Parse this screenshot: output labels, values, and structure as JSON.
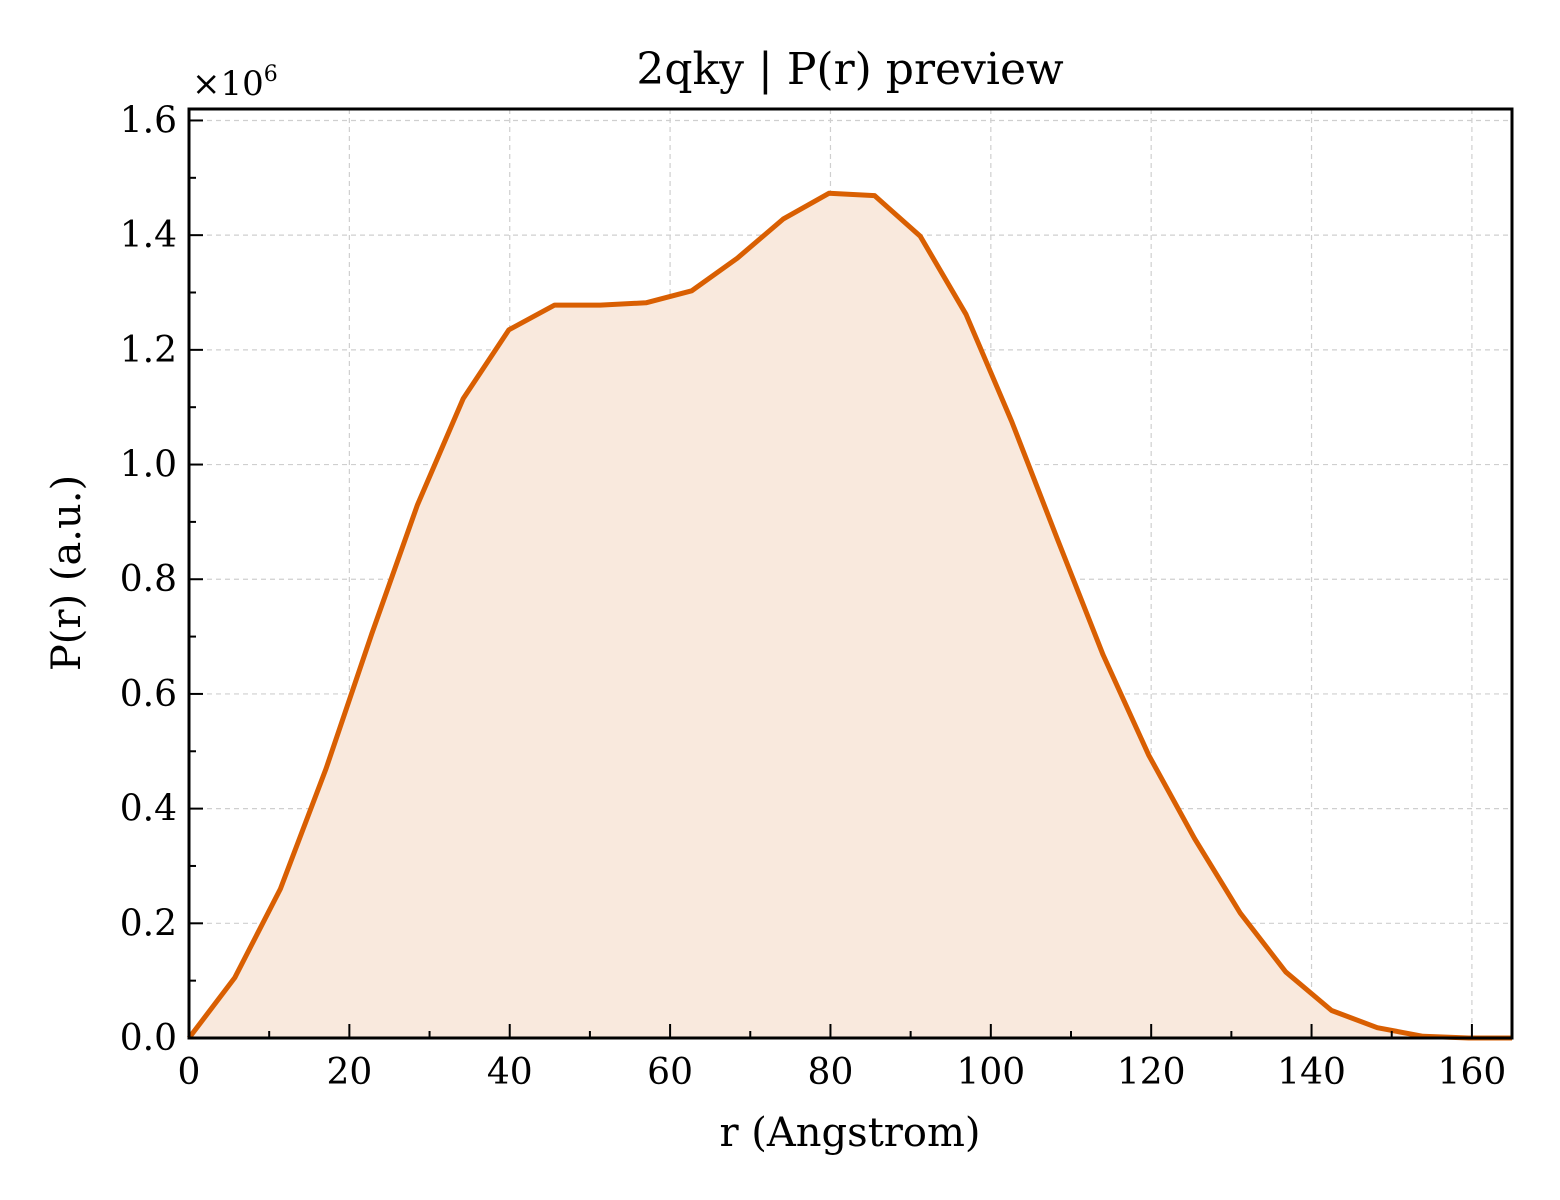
{
  "chart_data": {
    "type": "area",
    "title": "2qky | P(r) preview",
    "xlabel": "r (Angstrom)",
    "ylabel": "P(r) (a.u.)",
    "y_multiplier_base": "×10",
    "y_multiplier_exponent": "6",
    "xlim": [
      0,
      165
    ],
    "ylim": [
      0,
      1.62
    ],
    "xticks": [
      0,
      20,
      40,
      60,
      80,
      100,
      120,
      140,
      160
    ],
    "yticks": [
      0.0,
      0.2,
      0.4,
      0.6,
      0.8,
      1.0,
      1.2,
      1.4,
      1.6
    ],
    "xtick_labels": [
      "0",
      "20",
      "40",
      "60",
      "80",
      "100",
      "120",
      "140",
      "160"
    ],
    "ytick_labels": [
      "0.0",
      "0.2",
      "0.4",
      "0.6",
      "0.8",
      "1.0",
      "1.2",
      "1.4",
      "1.6"
    ],
    "grid": true,
    "line_color": "#d95f02",
    "fill_color": "#f9e9dd",
    "series": [
      {
        "x": [
          0,
          5.7,
          11.4,
          17.1,
          22.8,
          28.5,
          34.2,
          39.9,
          45.6,
          51.3,
          57.0,
          62.7,
          68.4,
          74.1,
          79.8,
          85.5,
          91.2,
          96.9,
          102.6,
          108.3,
          114.0,
          119.7,
          125.4,
          131.1,
          136.8,
          142.5,
          148.2,
          153.9,
          159.6,
          165.0
        ],
        "y": [
          0.0,
          0.105,
          0.26,
          0.47,
          0.705,
          0.93,
          1.115,
          1.235,
          1.278,
          1.278,
          1.282,
          1.303,
          1.36,
          1.428,
          1.473,
          1.469,
          1.398,
          1.262,
          1.075,
          0.87,
          0.668,
          0.493,
          0.348,
          0.218,
          0.115,
          0.048,
          0.018,
          0.003,
          0.0,
          0.0
        ]
      }
    ]
  }
}
